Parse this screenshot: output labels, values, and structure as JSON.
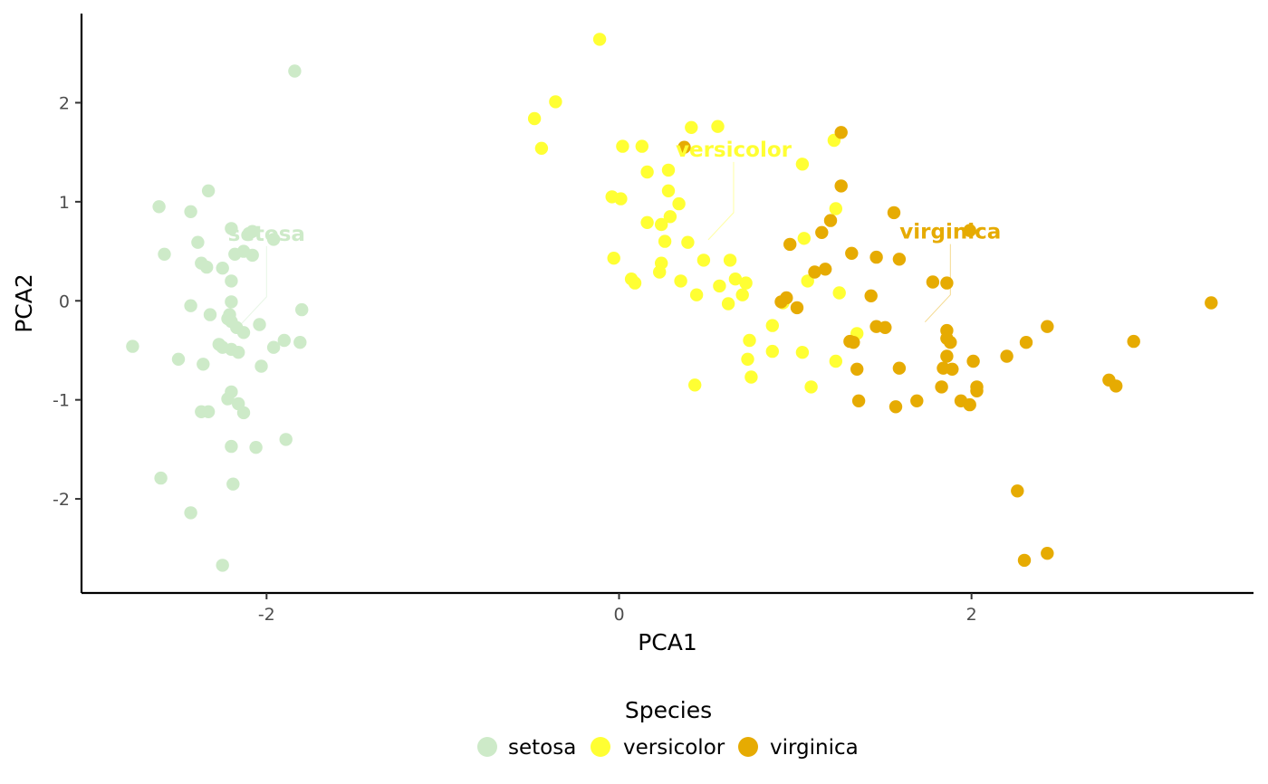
{
  "chart_data": {
    "type": "scatter",
    "xlabel": "PCA1",
    "ylabel": "PCA2",
    "xlim": [
      -3.05,
      3.6
    ],
    "ylim": [
      -2.95,
      2.9
    ],
    "x_ticks": [
      -2,
      0,
      2
    ],
    "x_tick_labels": [
      "-2",
      "0",
      "2"
    ],
    "y_ticks": [
      -2,
      -1,
      0,
      1,
      2
    ],
    "y_tick_labels": [
      "-2",
      "-1",
      "0",
      "1",
      "2"
    ],
    "grid": false,
    "legend": {
      "title": "Species",
      "placement": "bottom",
      "entries": [
        "setosa",
        "versicolor",
        "virginica"
      ]
    },
    "series": [
      {
        "name": "setosa",
        "color": "#cdeac8",
        "label_text": "setosa",
        "label_at": [
          -2.0,
          0.68
        ],
        "points": [
          [
            -1.84,
            2.32
          ],
          [
            -2.33,
            1.11
          ],
          [
            -2.61,
            0.95
          ],
          [
            -2.43,
            0.9
          ],
          [
            -2.2,
            0.73
          ],
          [
            -2.08,
            0.7
          ],
          [
            -2.1,
            0.68
          ],
          [
            -2.39,
            0.59
          ],
          [
            -1.96,
            0.62
          ],
          [
            -2.13,
            0.5
          ],
          [
            -2.58,
            0.47
          ],
          [
            -2.18,
            0.47
          ],
          [
            -2.08,
            0.46
          ],
          [
            -2.37,
            0.38
          ],
          [
            -2.34,
            0.34
          ],
          [
            -2.25,
            0.33
          ],
          [
            -2.2,
            0.2
          ],
          [
            -2.2,
            -0.01
          ],
          [
            -2.43,
            -0.05
          ],
          [
            -2.32,
            -0.14
          ],
          [
            -1.8,
            -0.09
          ],
          [
            -2.21,
            -0.14
          ],
          [
            -2.2,
            -0.21
          ],
          [
            -2.22,
            -0.18
          ],
          [
            -2.04,
            -0.24
          ],
          [
            -2.17,
            -0.27
          ],
          [
            -2.13,
            -0.32
          ],
          [
            -2.76,
            -0.46
          ],
          [
            -2.27,
            -0.44
          ],
          [
            -2.25,
            -0.47
          ],
          [
            -2.2,
            -0.49
          ],
          [
            -2.16,
            -0.52
          ],
          [
            -1.96,
            -0.47
          ],
          [
            -1.9,
            -0.4
          ],
          [
            -1.81,
            -0.42
          ],
          [
            -2.5,
            -0.59
          ],
          [
            -2.36,
            -0.64
          ],
          [
            -2.03,
            -0.66
          ],
          [
            -2.2,
            -0.92
          ],
          [
            -2.22,
            -0.99
          ],
          [
            -2.16,
            -1.04
          ],
          [
            -2.37,
            -1.12
          ],
          [
            -2.33,
            -1.12
          ],
          [
            -2.13,
            -1.13
          ],
          [
            -1.89,
            -1.4
          ],
          [
            -2.2,
            -1.47
          ],
          [
            -2.06,
            -1.48
          ],
          [
            -2.6,
            -1.79
          ],
          [
            -2.19,
            -1.85
          ],
          [
            -2.43,
            -2.14
          ],
          [
            -2.25,
            -2.67
          ]
        ]
      },
      {
        "name": "versicolor",
        "color": "#ffff33",
        "label_text": "versicolor",
        "label_at": [
          0.65,
          1.53
        ],
        "points": [
          [
            -0.11,
            2.64
          ],
          [
            -0.36,
            2.01
          ],
          [
            -0.48,
            1.84
          ],
          [
            -0.44,
            1.54
          ],
          [
            0.41,
            1.75
          ],
          [
            0.56,
            1.76
          ],
          [
            0.02,
            1.56
          ],
          [
            0.13,
            1.56
          ],
          [
            1.22,
            1.62
          ],
          [
            1.04,
            1.38
          ],
          [
            0.16,
            1.3
          ],
          [
            0.28,
            1.32
          ],
          [
            0.28,
            1.11
          ],
          [
            -0.04,
            1.05
          ],
          [
            0.01,
            1.03
          ],
          [
            0.34,
            0.98
          ],
          [
            1.23,
            0.93
          ],
          [
            0.29,
            0.85
          ],
          [
            0.16,
            0.79
          ],
          [
            0.24,
            0.77
          ],
          [
            1.05,
            0.63
          ],
          [
            0.26,
            0.6
          ],
          [
            0.39,
            0.59
          ],
          [
            -0.03,
            0.43
          ],
          [
            0.48,
            0.41
          ],
          [
            0.63,
            0.41
          ],
          [
            0.24,
            0.38
          ],
          [
            0.23,
            0.29
          ],
          [
            0.07,
            0.22
          ],
          [
            0.09,
            0.18
          ],
          [
            0.35,
            0.2
          ],
          [
            0.66,
            0.22
          ],
          [
            0.72,
            0.18
          ],
          [
            0.57,
            0.15
          ],
          [
            1.07,
            0.2
          ],
          [
            1.25,
            0.08
          ],
          [
            0.44,
            0.06
          ],
          [
            0.7,
            0.06
          ],
          [
            0.62,
            -0.03
          ],
          [
            0.87,
            -0.25
          ],
          [
            1.35,
            -0.33
          ],
          [
            0.74,
            -0.4
          ],
          [
            0.87,
            -0.51
          ],
          [
            1.04,
            -0.52
          ],
          [
            0.73,
            -0.59
          ],
          [
            1.23,
            -0.61
          ],
          [
            0.75,
            -0.77
          ],
          [
            0.43,
            -0.85
          ],
          [
            1.09,
            -0.87
          ],
          [
            0.93,
            -0.02
          ]
        ]
      },
      {
        "name": "virginica",
        "color": "#e6ab02",
        "label_text": "virginica",
        "label_at": [
          1.88,
          0.7
        ],
        "points": [
          [
            1.26,
            1.7
          ],
          [
            0.37,
            1.55
          ],
          [
            1.26,
            1.16
          ],
          [
            1.56,
            0.89
          ],
          [
            1.2,
            0.81
          ],
          [
            1.15,
            0.69
          ],
          [
            1.99,
            0.71
          ],
          [
            0.97,
            0.57
          ],
          [
            1.32,
            0.48
          ],
          [
            1.46,
            0.44
          ],
          [
            1.59,
            0.42
          ],
          [
            1.17,
            0.32
          ],
          [
            1.11,
            0.29
          ],
          [
            1.78,
            0.19
          ],
          [
            1.86,
            0.18
          ],
          [
            1.43,
            0.05
          ],
          [
            0.95,
            0.03
          ],
          [
            0.92,
            -0.01
          ],
          [
            1.01,
            -0.07
          ],
          [
            1.46,
            -0.26
          ],
          [
            1.51,
            -0.27
          ],
          [
            1.86,
            -0.3
          ],
          [
            3.36,
            -0.02
          ],
          [
            1.86,
            -0.38
          ],
          [
            1.33,
            -0.42
          ],
          [
            1.88,
            -0.42
          ],
          [
            2.31,
            -0.42
          ],
          [
            2.43,
            -0.26
          ],
          [
            2.92,
            -0.41
          ],
          [
            2.2,
            -0.56
          ],
          [
            1.86,
            -0.56
          ],
          [
            2.01,
            -0.61
          ],
          [
            1.84,
            -0.68
          ],
          [
            1.89,
            -0.69
          ],
          [
            1.35,
            -0.69
          ],
          [
            1.59,
            -0.68
          ],
          [
            2.78,
            -0.8
          ],
          [
            2.82,
            -0.86
          ],
          [
            1.83,
            -0.87
          ],
          [
            2.03,
            -0.87
          ],
          [
            2.03,
            -0.91
          ],
          [
            1.36,
            -1.01
          ],
          [
            1.69,
            -1.01
          ],
          [
            1.94,
            -1.01
          ],
          [
            1.99,
            -1.05
          ],
          [
            1.57,
            -1.07
          ],
          [
            2.26,
            -1.92
          ],
          [
            2.43,
            -2.55
          ],
          [
            2.3,
            -2.62
          ],
          [
            1.31,
            -0.41
          ]
        ]
      }
    ]
  }
}
